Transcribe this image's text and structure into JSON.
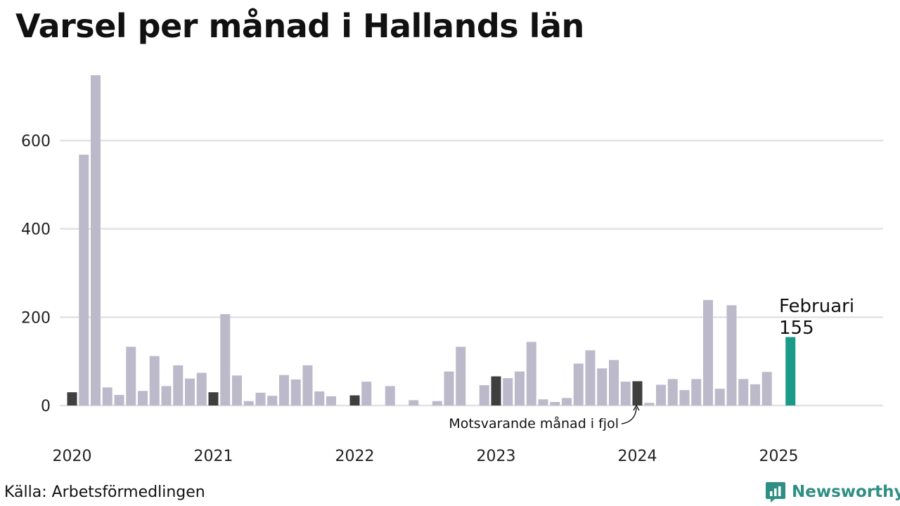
{
  "title": "Varsel per månad i Hallands län",
  "source": "Källa: Arbetsförmedlingen",
  "brand": {
    "name": "Newsworthy",
    "color": "#2f8f85",
    "logo_icon": "bar-chart-badge-icon"
  },
  "colors": {
    "default_bar": "#bcbaca",
    "comparison_bar": "#3f3f3f",
    "highlight_bar": "#1a9a88",
    "grid": "#e2e2e6"
  },
  "annotations": {
    "highlight_month": "Februari",
    "highlight_value": "155",
    "comparison_label": "Motsvarande månad i fjol"
  },
  "chart_data": {
    "type": "bar",
    "title": "Varsel per månad i Hallands län",
    "xlabel": "",
    "ylabel": "",
    "ylim": [
      0,
      750
    ],
    "yticks": [
      0,
      200,
      400,
      600
    ],
    "grid": true,
    "x_tick_labels": [
      "2020",
      "2021",
      "2022",
      "2023",
      "2024",
      "2025"
    ],
    "start_month": "2020-01",
    "months": [
      "2020-01",
      "2020-02",
      "2020-03",
      "2020-04",
      "2020-05",
      "2020-06",
      "2020-07",
      "2020-08",
      "2020-09",
      "2020-10",
      "2020-11",
      "2020-12",
      "2021-01",
      "2021-02",
      "2021-03",
      "2021-04",
      "2021-05",
      "2021-06",
      "2021-07",
      "2021-08",
      "2021-09",
      "2021-10",
      "2021-11",
      "2021-12",
      "2022-01",
      "2022-02",
      "2022-03",
      "2022-04",
      "2022-05",
      "2022-06",
      "2022-07",
      "2022-08",
      "2022-09",
      "2022-10",
      "2022-11",
      "2022-12",
      "2023-01",
      "2023-02",
      "2023-03",
      "2023-04",
      "2023-05",
      "2023-06",
      "2023-07",
      "2023-08",
      "2023-09",
      "2023-10",
      "2023-11",
      "2023-12",
      "2024-01",
      "2024-02",
      "2024-03",
      "2024-04",
      "2024-05",
      "2024-06",
      "2024-07",
      "2024-08",
      "2024-09",
      "2024-10",
      "2024-11",
      "2024-12",
      "2025-01",
      "2025-02"
    ],
    "values": [
      30,
      568,
      748,
      41,
      24,
      133,
      33,
      112,
      44,
      91,
      61,
      74,
      30,
      207,
      68,
      10,
      29,
      22,
      69,
      59,
      91,
      32,
      21,
      0,
      23,
      54,
      0,
      44,
      0,
      12,
      0,
      10,
      77,
      133,
      0,
      46,
      66,
      62,
      77,
      144,
      14,
      8,
      17,
      95,
      125,
      84,
      103,
      54,
      55,
      6,
      47,
      60,
      35,
      60,
      239,
      38,
      227,
      60,
      48,
      76,
      0,
      155
    ],
    "comparison_indices": [
      0,
      12,
      24,
      36,
      48
    ],
    "highlight_index": 61
  }
}
